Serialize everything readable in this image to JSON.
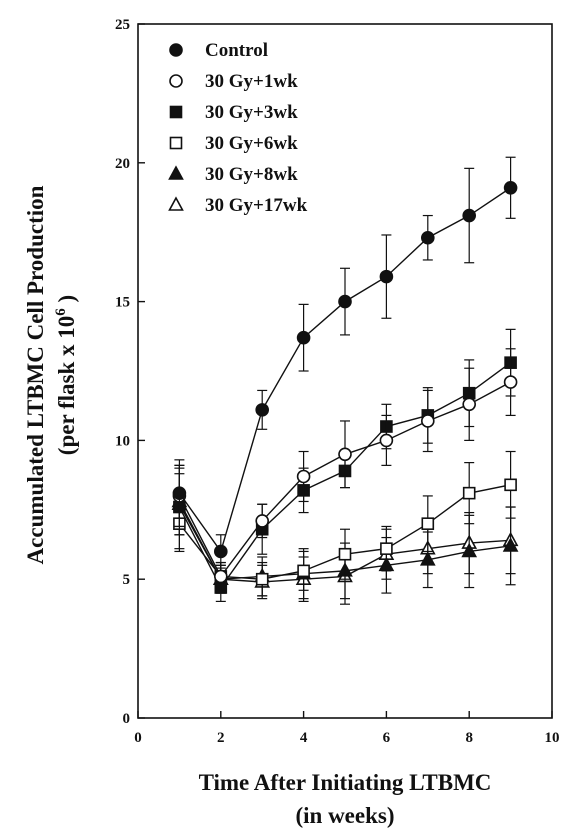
{
  "chart_data": {
    "type": "line",
    "xlabel": [
      "Time After Initiating LTBMC",
      "(in weeks)"
    ],
    "ylabel": [
      "Accumulated LTBMC Cell Production",
      "(per flask x 10",
      "6",
      " )"
    ],
    "xlim": [
      0,
      10
    ],
    "ylim": [
      0,
      25
    ],
    "xticks": [
      "0",
      "2",
      "4",
      "6",
      "8",
      "10"
    ],
    "yticks": [
      "0",
      "5",
      "10",
      "15",
      "20",
      "25"
    ],
    "x": [
      1,
      2,
      3,
      4,
      5,
      6,
      7,
      8,
      9
    ],
    "grid": false,
    "legend_position": "top-left",
    "series": [
      {
        "name": "Control",
        "marker": "circle",
        "filled": true,
        "values": [
          8.1,
          6.0,
          11.1,
          13.7,
          15.0,
          15.9,
          17.3,
          18.1,
          19.1
        ],
        "errors": [
          1.2,
          0.6,
          0.7,
          1.2,
          1.2,
          1.5,
          0.8,
          1.7,
          1.1
        ]
      },
      {
        "name": "30 Gy+1wk",
        "marker": "circle",
        "filled": false,
        "values": [
          8.0,
          5.1,
          7.1,
          8.7,
          9.5,
          10.0,
          10.7,
          11.3,
          12.1
        ],
        "errors": [
          1.1,
          0.5,
          0.6,
          0.9,
          1.2,
          0.9,
          1.1,
          1.3,
          1.2
        ]
      },
      {
        "name": "30 Gy+3wk",
        "marker": "square",
        "filled": true,
        "values": [
          7.6,
          4.7,
          6.8,
          8.2,
          8.9,
          10.5,
          10.9,
          11.7,
          12.8
        ],
        "errors": [
          1.5,
          0.5,
          0.9,
          0.8,
          0.6,
          0.8,
          1.0,
          1.2,
          1.2
        ]
      },
      {
        "name": "30 Gy+6wk",
        "marker": "square",
        "filled": false,
        "values": [
          7.0,
          5.1,
          5.0,
          5.3,
          5.9,
          6.1,
          7.0,
          8.1,
          8.4
        ],
        "errors": [
          1.0,
          0.5,
          0.6,
          0.7,
          0.9,
          0.8,
          1.0,
          1.1,
          1.2
        ]
      },
      {
        "name": "30 Gy+8wk",
        "marker": "triangle",
        "filled": true,
        "values": [
          7.8,
          5.0,
          5.1,
          5.2,
          5.3,
          5.5,
          5.7,
          6.0,
          6.2
        ],
        "errors": [
          1.2,
          0.5,
          0.7,
          0.9,
          1.0,
          1.0,
          1.0,
          1.3,
          1.4
        ]
      },
      {
        "name": "30 Gy+17wk",
        "marker": "triangle",
        "filled": false,
        "values": [
          7.7,
          5.0,
          4.9,
          5.0,
          5.1,
          5.9,
          6.1,
          6.3,
          6.4
        ],
        "errors": [
          1.1,
          0.5,
          0.6,
          0.8,
          1.0,
          0.9,
          0.9,
          1.1,
          1.2
        ]
      }
    ]
  }
}
